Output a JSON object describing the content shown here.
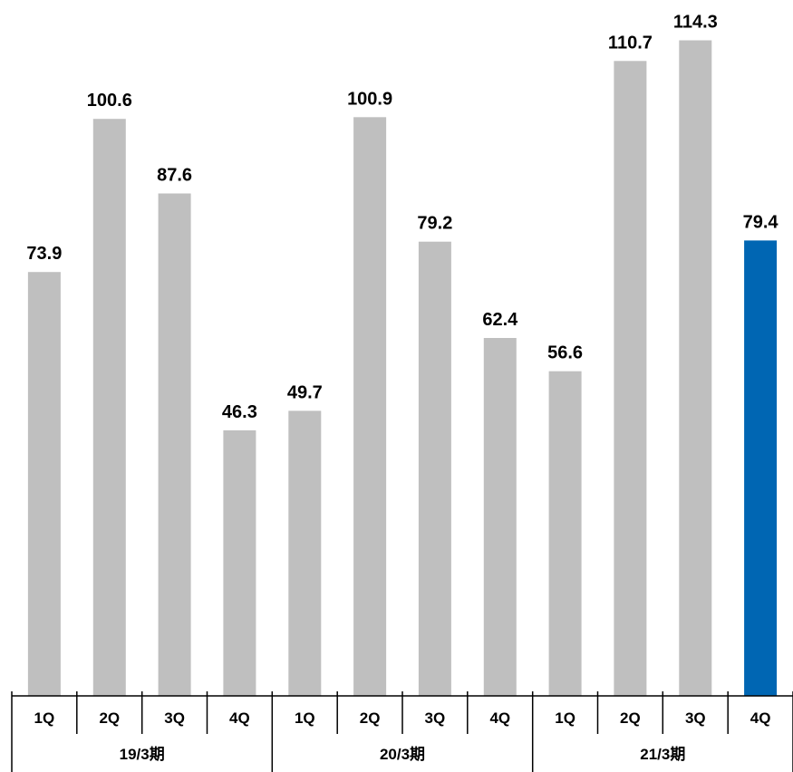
{
  "chart_data": {
    "type": "bar",
    "title": "",
    "xlabel": "",
    "ylabel": "",
    "ylim": [
      0,
      115
    ],
    "grid": false,
    "categories": [
      "1Q",
      "2Q",
      "3Q",
      "4Q",
      "1Q",
      "2Q",
      "3Q",
      "4Q",
      "1Q",
      "2Q",
      "3Q",
      "4Q"
    ],
    "groups": [
      {
        "label": "19/3期",
        "categories": [
          "1Q",
          "2Q",
          "3Q",
          "4Q"
        ]
      },
      {
        "label": "20/3期",
        "categories": [
          "1Q",
          "2Q",
          "3Q",
          "4Q"
        ]
      },
      {
        "label": "21/3期",
        "categories": [
          "1Q",
          "2Q",
          "3Q",
          "4Q"
        ]
      }
    ],
    "values": [
      73.9,
      100.6,
      87.6,
      46.3,
      49.7,
      100.9,
      79.2,
      62.4,
      56.6,
      110.7,
      114.3,
      79.4
    ],
    "value_labels": [
      "73.9",
      "100.6",
      "87.6",
      "46.3",
      "49.7",
      "100.9",
      "79.2",
      "62.4",
      "56.6",
      "110.7",
      "114.3",
      "79.4"
    ],
    "colors": {
      "default": "#bfbfbf",
      "highlight": "#0066b3"
    },
    "highlight_index": 11
  }
}
